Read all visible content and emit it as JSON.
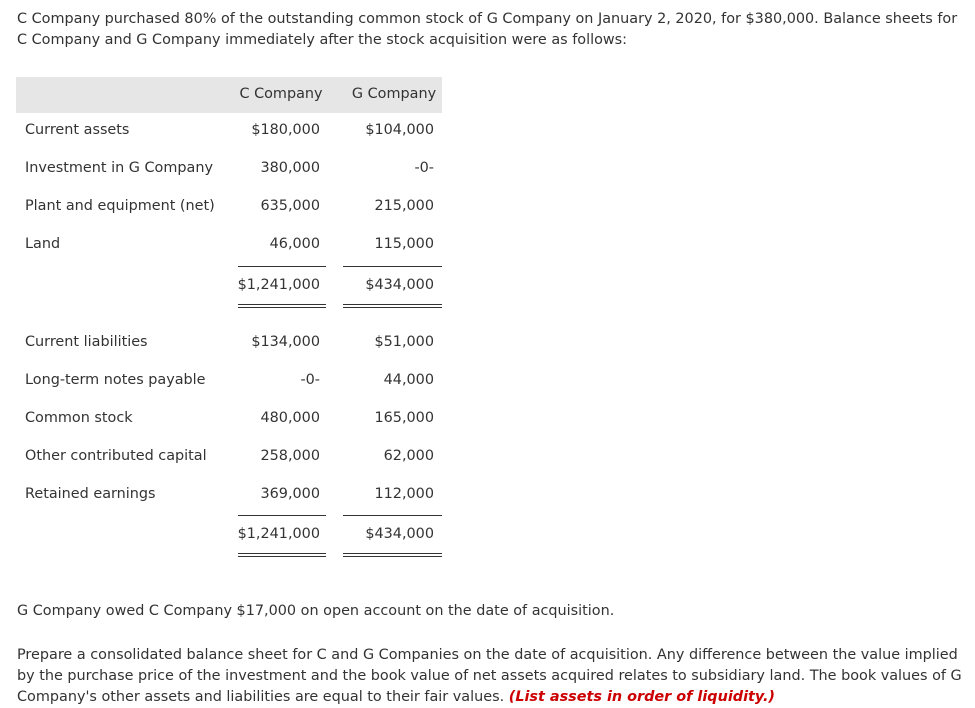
{
  "intro": "C Company purchased 80% of the outstanding common stock of G Company on January 2, 2020, for $380,000. Balance sheets for C Company and G Company immediately after the stock acquisition were as follows:",
  "table": {
    "headers": [
      "C Company",
      "G Company"
    ],
    "assets": [
      {
        "label": "Current assets",
        "c": "$180,000",
        "g": "$104,000"
      },
      {
        "label": "Investment in G Company",
        "c": "380,000",
        "g": "-0-"
      },
      {
        "label": "Plant and equipment (net)",
        "c": "635,000",
        "g": "215,000"
      },
      {
        "label": "Land",
        "c": "46,000",
        "g": "115,000"
      }
    ],
    "asset_total": {
      "c": "$1,241,000",
      "g": "$434,000"
    },
    "liabilities": [
      {
        "label": "Current liabilities",
        "c": "$134,000",
        "g": "$51,000"
      },
      {
        "label": "Long-term notes payable",
        "c": "-0-",
        "g": "44,000"
      },
      {
        "label": "Common stock",
        "c": "480,000",
        "g": "165,000"
      },
      {
        "label": "Other contributed capital",
        "c": "258,000",
        "g": "62,000"
      },
      {
        "label": "Retained earnings",
        "c": "369,000",
        "g": "112,000"
      }
    ],
    "liab_total": {
      "c": "$1,241,000",
      "g": "$434,000"
    }
  },
  "note": "G Company owed C Company $17,000 on open account on the date of acquisition.",
  "instructions": "Prepare a consolidated balance sheet for C and G Companies on the date of acquisition. Any difference between the value implied by the purchase price of the investment and the book value of net assets acquired relates to subsidiary land. The book values of G Company's other assets and liabilities are equal to their fair values.",
  "instructions_emphasis": "(List assets in order of liquidity.)"
}
